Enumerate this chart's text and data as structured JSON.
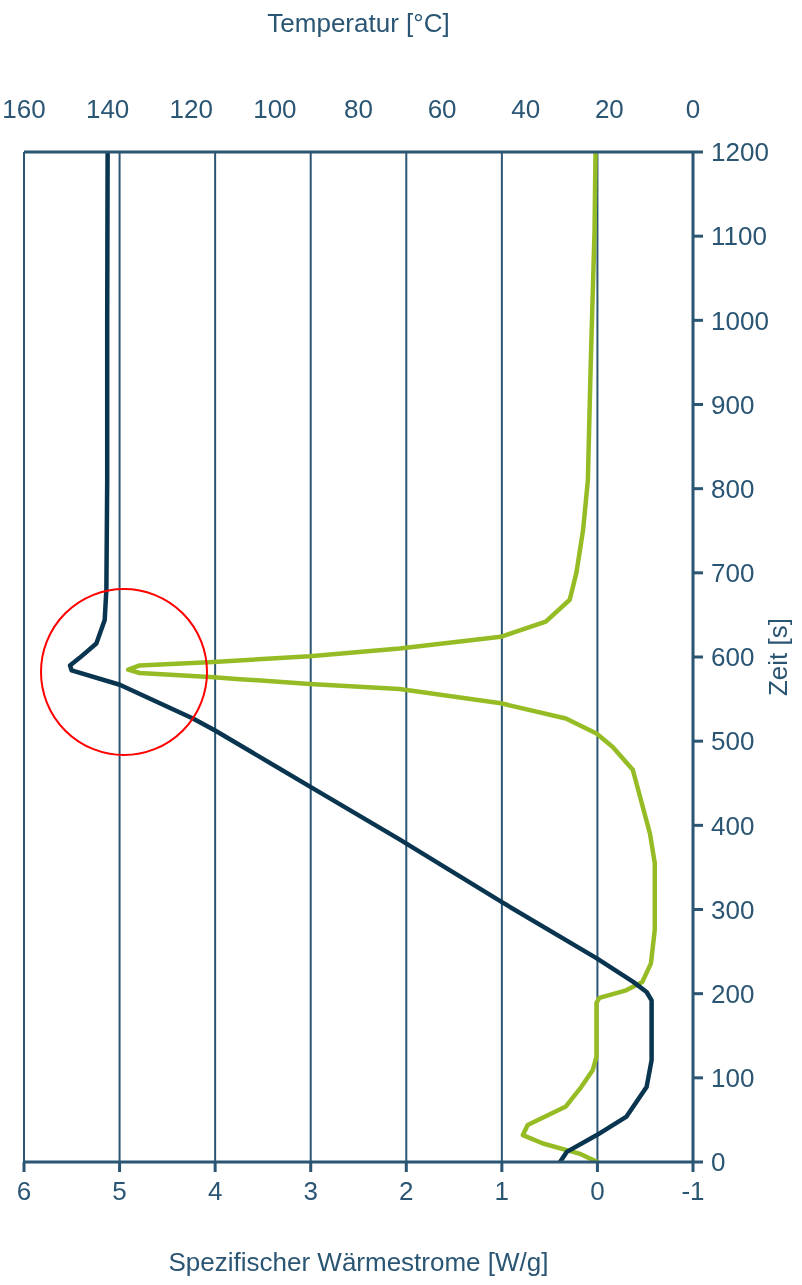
{
  "chart_data": {
    "type": "line",
    "orientation": "horizontal",
    "xlabel": "Spezifischer Wärmestrome  [W/g]",
    "x2label": "Temperatur  [°C]",
    "ylabel": "Zeit  [s]",
    "xlim": [
      6,
      -1
    ],
    "xticks": [
      6,
      5,
      4,
      3,
      2,
      1,
      0,
      -1
    ],
    "x2lim": [
      160,
      0
    ],
    "x2ticks": [
      160,
      140,
      120,
      100,
      80,
      60,
      40,
      20,
      0
    ],
    "ylim": [
      0,
      1200
    ],
    "yticks": [
      0,
      100,
      200,
      300,
      400,
      500,
      600,
      700,
      800,
      900,
      1000,
      1100,
      1200
    ],
    "grid": "x",
    "series": [
      {
        "color": "#95bc24",
        "x": [
          0,
          10,
          22,
          32,
          44,
          66,
          89,
          109,
          125,
          189,
          195,
          204,
          214,
          236,
          276,
          355,
          390,
          466,
          493,
          509,
          527,
          545,
          562,
          568,
          574,
          576,
          581,
          585,
          590,
          594,
          601,
          610,
          624,
          642,
          668,
          700,
          751,
          810,
          949,
          1107,
          1200
        ],
        "values": [
          0,
          0.19,
          0.57,
          0.78,
          0.73,
          0.33,
          0.17,
          0.05,
          0.01,
          0.01,
          -0.02,
          -0.3,
          -0.47,
          -0.56,
          -0.6,
          -0.6,
          -0.55,
          -0.37,
          -0.16,
          0.01,
          0.33,
          1.01,
          2.07,
          3.01,
          3.78,
          4.01,
          4.79,
          4.91,
          4.79,
          4.02,
          3.01,
          2.07,
          1.01,
          0.54,
          0.29,
          0.22,
          0.15,
          0.1,
          0.07,
          0.03,
          0.02
        ]
      },
      {
        "color": "#0a3550",
        "axis": "x2",
        "x": [
          0,
          12,
          32,
          54,
          89,
          121,
          192,
          202,
          214,
          242,
          309,
          383,
          446,
          513,
          527,
          567,
          584,
          590,
          599,
          616,
          644,
          680,
          810,
          1000,
          1200
        ],
        "values": [
          31.8,
          30.2,
          23,
          15.9,
          11.1,
          9.9,
          9.9,
          11.1,
          14.3,
          23,
          45.8,
          70.1,
          91.6,
          114.4,
          119.6,
          137.1,
          148.6,
          149,
          146.7,
          142.7,
          140.7,
          140.3,
          140.1,
          140.1,
          140
        ]
      }
    ]
  }
}
